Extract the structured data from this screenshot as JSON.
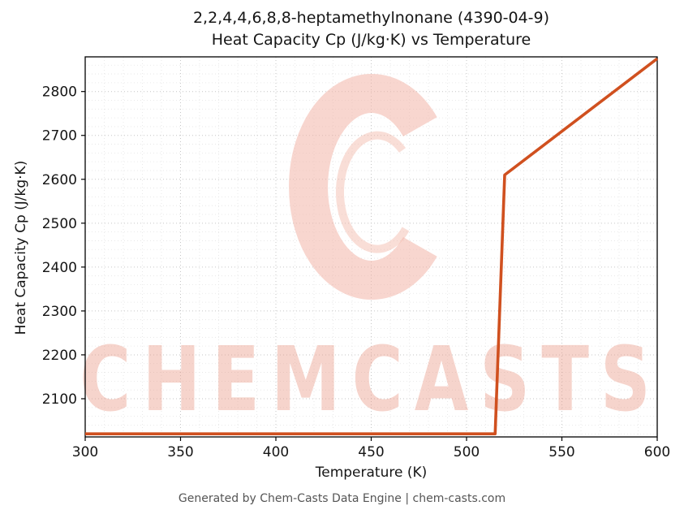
{
  "chart": {
    "title_line1": "2,2,4,4,6,8,8-heptamethylnonane (4390-04-9)",
    "title_line2": "Heat Capacity Cp (J/kg·K) vs Temperature",
    "xlabel": "Temperature (K)",
    "ylabel": "Heat Capacity Cp (J/kg·K)"
  },
  "watermark": {
    "text": "CHEMCASTS"
  },
  "footer": {
    "text": "Generated by Chem-Casts Data Engine | chem-casts.com"
  },
  "chart_data": {
    "type": "line",
    "title": "2,2,4,4,6,8,8-heptamethylnonane (4390-04-9) Heat Capacity Cp (J/kg·K) vs Temperature",
    "xlabel": "Temperature (K)",
    "ylabel": "Heat Capacity Cp (J/kg·K)",
    "xlim": [
      300,
      600
    ],
    "ylim": [
      2013,
      2879
    ],
    "xticks": [
      300,
      350,
      400,
      450,
      500,
      550,
      600
    ],
    "yticks": [
      2100,
      2200,
      2300,
      2400,
      2500,
      2600,
      2700,
      2800
    ],
    "grid": true,
    "legend": "none",
    "line_color": "#d0501f",
    "series": [
      {
        "name": "Heat Capacity Cp",
        "points": [
          [
            300,
            2020
          ],
          [
            515,
            2020
          ],
          [
            520,
            2610
          ],
          [
            600,
            2875
          ]
        ]
      }
    ]
  }
}
